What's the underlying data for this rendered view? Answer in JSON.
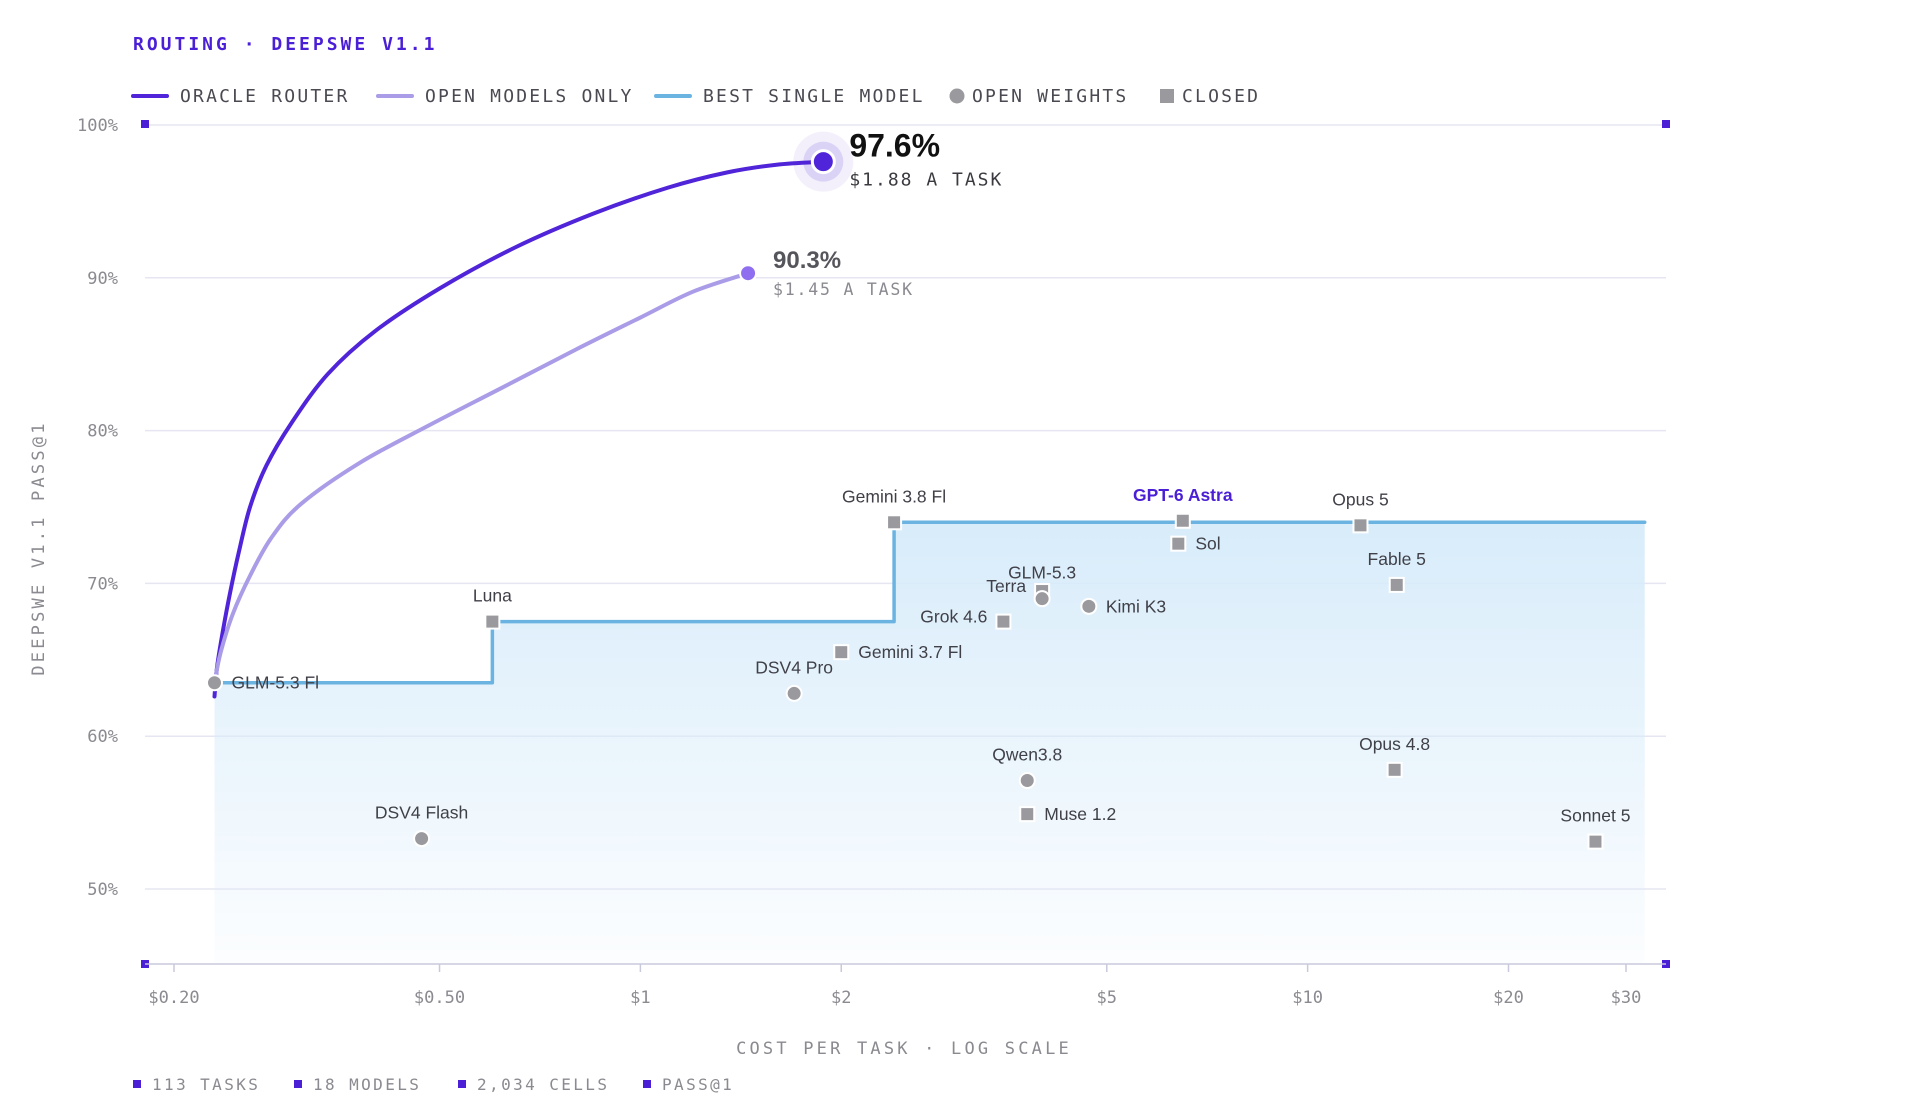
{
  "header": {
    "title": "ROUTING · DEEPSWE V1.1"
  },
  "legend": [
    {
      "label": "ORACLE ROUTER",
      "kind": "line",
      "color": "#5024d8"
    },
    {
      "label": "OPEN MODELS ONLY",
      "kind": "line",
      "color": "#ab9ce8"
    },
    {
      "label": "BEST SINGLE MODEL",
      "kind": "line",
      "color": "#6bb4e2"
    },
    {
      "label": "OPEN WEIGHTS",
      "kind": "circle",
      "color": "#9a9a9e"
    },
    {
      "label": "CLOSED",
      "kind": "square",
      "color": "#9a9a9e"
    }
  ],
  "colors": {
    "accent": "#4a1fd6",
    "oracle": "#5024d8",
    "open": "#ab9ce8",
    "best": "#6bb4e2",
    "point": "#9a9a9e",
    "grid": "#e6e6f2"
  },
  "footer": [
    "113 TASKS",
    "18 MODELS",
    "2,034 CELLS",
    "PASS@1"
  ],
  "chart_data": {
    "type": "scatter",
    "title": "ROUTING · DEEPSWE V1.1",
    "xlabel": "COST PER TASK · LOG SCALE",
    "ylabel": "DEEPSWE V1.1 PASS@1",
    "x_scale": "log",
    "xlim": [
      0.19,
      34
    ],
    "ylim": [
      45,
      100
    ],
    "grid": true,
    "legend_position": "top-left",
    "x_ticks": [
      {
        "value": 0.2,
        "label": "$0.20"
      },
      {
        "value": 0.5,
        "label": "$0.50"
      },
      {
        "value": 1,
        "label": "$1"
      },
      {
        "value": 2,
        "label": "$2"
      },
      {
        "value": 5,
        "label": "$5"
      },
      {
        "value": 10,
        "label": "$10"
      },
      {
        "value": 20,
        "label": "$20"
      },
      {
        "value": 30,
        "label": "$30"
      }
    ],
    "y_ticks": [
      {
        "value": 50,
        "label": "50%"
      },
      {
        "value": 60,
        "label": "60%"
      },
      {
        "value": 70,
        "label": "70%"
      },
      {
        "value": 80,
        "label": "80%"
      },
      {
        "value": 90,
        "label": "90%"
      },
      {
        "value": 100,
        "label": "100%"
      }
    ],
    "series": [
      {
        "name": "ORACLE ROUTER",
        "kind": "line",
        "color": "#5024d8",
        "points": [
          [
            0.23,
            62.6
          ],
          [
            0.232,
            64.5
          ],
          [
            0.237,
            67
          ],
          [
            0.243,
            69.5
          ],
          [
            0.25,
            72
          ],
          [
            0.26,
            75
          ],
          [
            0.275,
            77.7
          ],
          [
            0.3,
            80.5
          ],
          [
            0.34,
            83.7
          ],
          [
            0.4,
            86.5
          ],
          [
            0.5,
            89.3
          ],
          [
            0.65,
            92
          ],
          [
            0.85,
            94.2
          ],
          [
            1.1,
            95.9
          ],
          [
            1.35,
            96.9
          ],
          [
            1.6,
            97.4
          ],
          [
            1.88,
            97.6
          ]
        ],
        "endpoint": {
          "x": 1.88,
          "y": 97.6,
          "value_label": "97.6%",
          "cost_label": "$1.88 A TASK"
        }
      },
      {
        "name": "OPEN MODELS ONLY",
        "kind": "line",
        "color": "#ab9ce8",
        "points": [
          [
            0.23,
            63.5
          ],
          [
            0.235,
            65.5
          ],
          [
            0.245,
            68
          ],
          [
            0.26,
            70.5
          ],
          [
            0.28,
            73
          ],
          [
            0.31,
            75.2
          ],
          [
            0.38,
            77.9
          ],
          [
            0.48,
            80.3
          ],
          [
            0.62,
            82.8
          ],
          [
            0.8,
            85.3
          ],
          [
            1.0,
            87.4
          ],
          [
            1.2,
            89.1
          ],
          [
            1.45,
            90.3
          ]
        ],
        "endpoint": {
          "x": 1.45,
          "y": 90.3,
          "value_label": "90.3%",
          "cost_label": "$1.45 A TASK"
        }
      },
      {
        "name": "BEST SINGLE MODEL",
        "kind": "step",
        "color": "#6bb4e2",
        "points": [
          [
            0.23,
            63.5
          ],
          [
            0.6,
            63.5
          ],
          [
            0.6,
            67.5
          ],
          [
            2.4,
            67.5
          ],
          [
            2.4,
            74
          ],
          [
            32,
            74
          ]
        ]
      }
    ],
    "models": [
      {
        "name": "GLM-5.3 Fl",
        "x": 0.23,
        "y": 63.5,
        "kind": "open",
        "label_side": "right",
        "highlight": false
      },
      {
        "name": "Luna",
        "x": 0.6,
        "y": 67.5,
        "kind": "closed",
        "label_side": "above",
        "highlight": false
      },
      {
        "name": "DSV4 Flash",
        "x": 0.47,
        "y": 53.3,
        "kind": "open",
        "label_side": "above",
        "highlight": false
      },
      {
        "name": "DSV4 Pro",
        "x": 1.7,
        "y": 62.8,
        "kind": "open",
        "label_side": "above",
        "highlight": false
      },
      {
        "name": "Gemini 3.7 Fl",
        "x": 2.0,
        "y": 65.5,
        "kind": "closed",
        "label_side": "right",
        "highlight": false
      },
      {
        "name": "Gemini 3.8 Fl",
        "x": 2.4,
        "y": 74,
        "kind": "closed",
        "label_side": "above",
        "highlight": false
      },
      {
        "name": "Grok 4.6",
        "x": 3.5,
        "y": 67.5,
        "kind": "closed",
        "label_side": "left",
        "highlight": false
      },
      {
        "name": "Terra",
        "x": 4.0,
        "y": 69.5,
        "kind": "closed",
        "label_side": "left",
        "highlight": false
      },
      {
        "name": "GLM-5.3",
        "x": 4.0,
        "y": 69.0,
        "kind": "open",
        "label_side": "above",
        "highlight": false
      },
      {
        "name": "Kimi K3",
        "x": 4.7,
        "y": 68.5,
        "kind": "open",
        "label_side": "right",
        "highlight": false
      },
      {
        "name": "Qwen3.8",
        "x": 3.8,
        "y": 57.1,
        "kind": "open",
        "label_side": "above",
        "highlight": false
      },
      {
        "name": "Muse 1.2",
        "x": 3.8,
        "y": 54.9,
        "kind": "closed",
        "label_side": "right",
        "highlight": false
      },
      {
        "name": "GPT-6 Astra",
        "x": 6.5,
        "y": 74.1,
        "kind": "closed",
        "label_side": "above",
        "highlight": true
      },
      {
        "name": "Sol",
        "x": 6.4,
        "y": 72.6,
        "kind": "closed",
        "label_side": "right",
        "highlight": false
      },
      {
        "name": "Opus 5",
        "x": 12,
        "y": 73.8,
        "kind": "closed",
        "label_side": "above",
        "highlight": false
      },
      {
        "name": "Fable 5",
        "x": 13.6,
        "y": 69.9,
        "kind": "closed",
        "label_side": "above",
        "highlight": false
      },
      {
        "name": "Opus 4.8",
        "x": 13.5,
        "y": 57.8,
        "kind": "closed",
        "label_side": "above",
        "highlight": false
      },
      {
        "name": "Sonnet 5",
        "x": 27,
        "y": 53.1,
        "kind": "closed",
        "label_side": "above",
        "highlight": false
      }
    ]
  }
}
